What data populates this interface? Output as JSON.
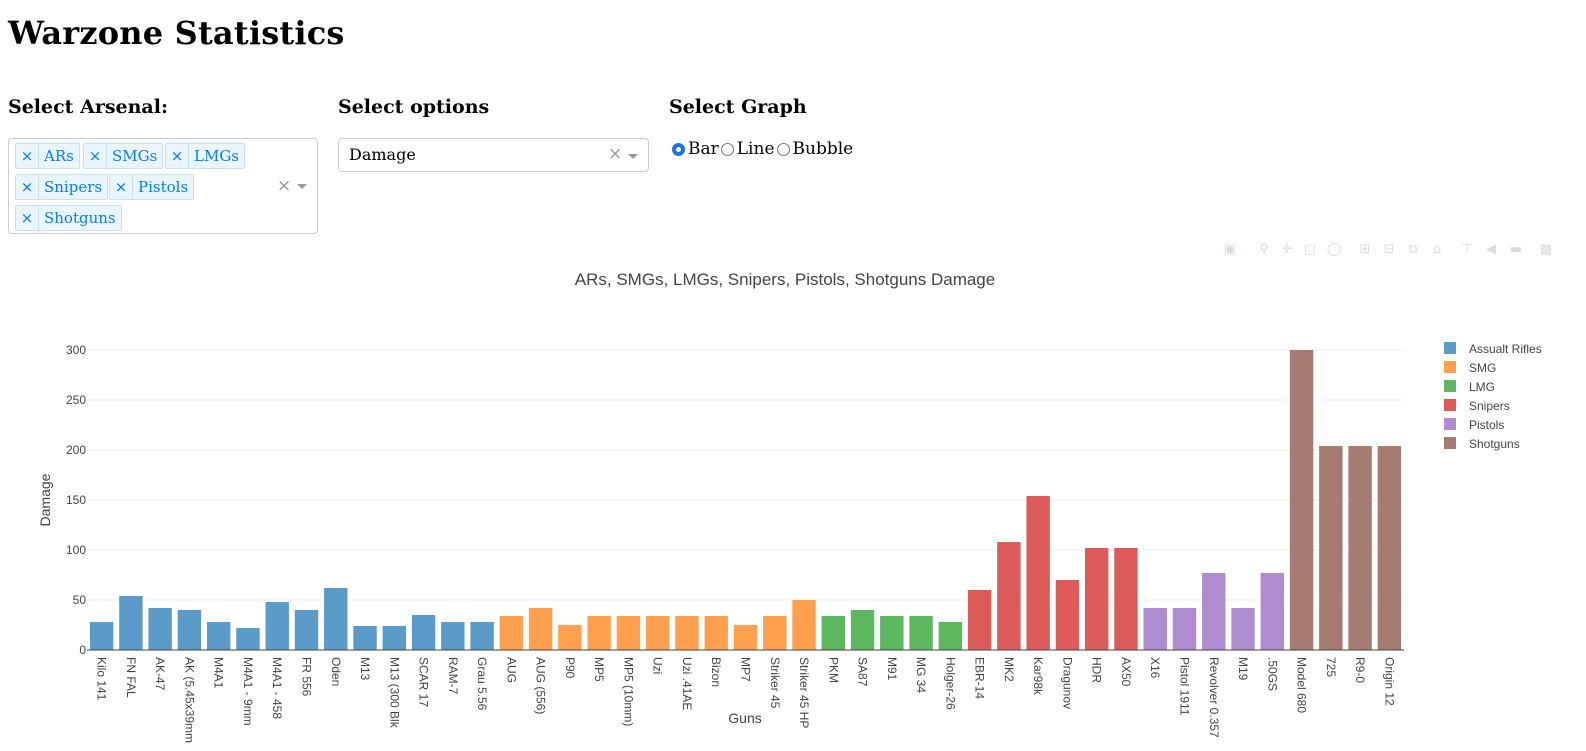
{
  "page": {
    "title": "Warzone Statistics"
  },
  "arsenal": {
    "label": "Select Arsenal:",
    "selected": [
      "ARs",
      "SMGs",
      "LMGs",
      "Snipers",
      "Pistols",
      "Shotguns"
    ]
  },
  "options": {
    "label": "Select options",
    "value": "Damage"
  },
  "graph": {
    "label": "Select Graph",
    "choices": [
      "Bar",
      "Line",
      "Bubble"
    ],
    "selected": "Bar"
  },
  "modebar_icons": [
    "camera-icon",
    "zoom-icon",
    "pan-icon",
    "box-select-icon",
    "lasso-icon",
    "zoom-in-icon",
    "zoom-out-icon",
    "autoscale-icon",
    "reset-axes-icon",
    "spike-lines-icon",
    "hover-closest-icon",
    "hover-compare-icon",
    "plotly-logo-icon"
  ],
  "chart_data": {
    "type": "bar",
    "title": "ARs, SMGs, LMGs, Snipers, Pistols, Shotguns Damage",
    "xlabel": "Guns",
    "ylabel": "Damage",
    "ylim": [
      0,
      300
    ],
    "yticks": [
      0,
      50,
      100,
      150,
      200,
      250,
      300
    ],
    "grid": true,
    "legend_position": "top-right",
    "series": [
      {
        "name": "Assualt Rifles",
        "color": "#5b9bc9",
        "categories": [
          "Kilo 141",
          "FN FAL",
          "AK-47",
          "AK (5.45x39mm",
          "M4A1",
          "M4A1 - 9mm",
          "M4A1 - 458",
          "FR 556",
          "Oden",
          "M13",
          "M13 (300 Blk",
          "SCAR 17",
          "RAM-7",
          "Grau 5.56"
        ],
        "values": [
          28,
          54,
          42,
          40,
          28,
          22,
          48,
          40,
          62,
          24,
          24,
          35,
          28,
          28
        ]
      },
      {
        "name": "SMG",
        "color": "#ffa04e",
        "categories": [
          "AUG",
          "AUG (556)",
          "P90",
          "MP5",
          "MP5 (10mm)",
          "Uzi",
          "Uzi .41AE",
          "Bizon",
          "MP7",
          "Striker 45",
          "Striker 45 HP"
        ],
        "values": [
          34,
          42,
          25,
          34,
          34,
          34,
          34,
          34,
          25,
          34,
          50
        ]
      },
      {
        "name": "LMG",
        "color": "#5db75e",
        "categories": [
          "PKM",
          "SA87",
          "M91",
          "MG 34",
          "Holger-26"
        ],
        "values": [
          34,
          40,
          34,
          34,
          28
        ]
      },
      {
        "name": "Snipers",
        "color": "#dd5b5b",
        "categories": [
          "EBR-14",
          "MK2",
          "Kar98k",
          "Dragunov",
          "HDR",
          "AX50"
        ],
        "values": [
          60,
          108,
          154,
          70,
          102,
          102
        ]
      },
      {
        "name": "Pistols",
        "color": "#ae8ccf",
        "categories": [
          "X16",
          "Pistol 1911",
          "Revolver 0.357",
          "M19",
          ".50GS"
        ],
        "values": [
          42,
          42,
          77,
          42,
          77
        ]
      },
      {
        "name": "Shotguns",
        "color": "#a67b72",
        "categories": [
          "Model 680",
          "725",
          "R9-0",
          "Origin 12"
        ],
        "values": [
          300,
          204,
          204,
          204
        ]
      }
    ]
  }
}
